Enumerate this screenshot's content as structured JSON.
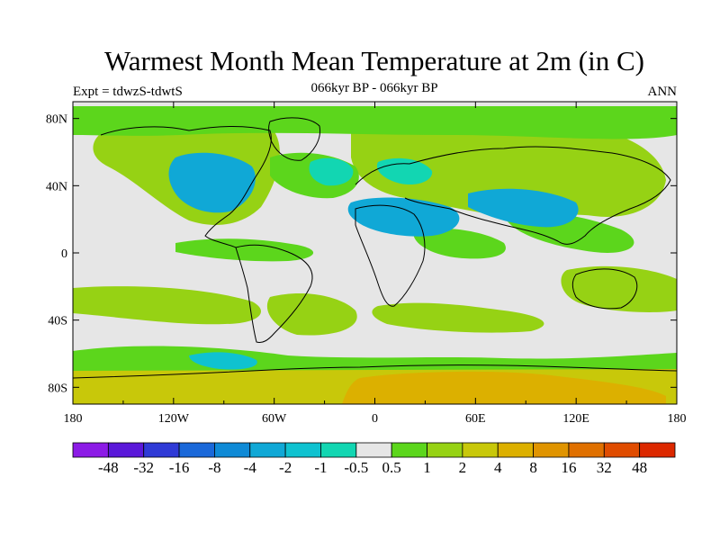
{
  "title": "Warmest Month Mean Temperature at 2m (in C)",
  "subtitle": "066kyr BP - 066kyr BP",
  "left_label": "Expt = tdwzS-tdwtS",
  "right_label": "ANN",
  "map": {
    "lon_range": [
      -180,
      180
    ],
    "lat_range": [
      -90,
      90
    ],
    "background_color": "#e6e6e6",
    "lon_ticks": [
      "180",
      "120W",
      "60W",
      "0",
      "60E",
      "120E",
      "180"
    ],
    "lat_ticks": [
      "80N",
      "40N",
      "0",
      "40S",
      "80S"
    ]
  },
  "colorbar": {
    "labels": [
      "-48",
      "-32",
      "-16",
      "-8",
      "-4",
      "-2",
      "-1",
      "-0.5",
      "0.5",
      "1",
      "2",
      "4",
      "8",
      "16",
      "32",
      "48"
    ],
    "colors": [
      "#8c1be6",
      "#5a18d9",
      "#2f3ad6",
      "#1a68d9",
      "#0f8ad6",
      "#10a8d6",
      "#0fc2d0",
      "#12d6b2",
      "#e6e6e6",
      "#5cd61c",
      "#96d214",
      "#c8c80a",
      "#dcb000",
      "#e09400",
      "#e07000",
      "#e04c00",
      "#dc2800"
    ]
  }
}
